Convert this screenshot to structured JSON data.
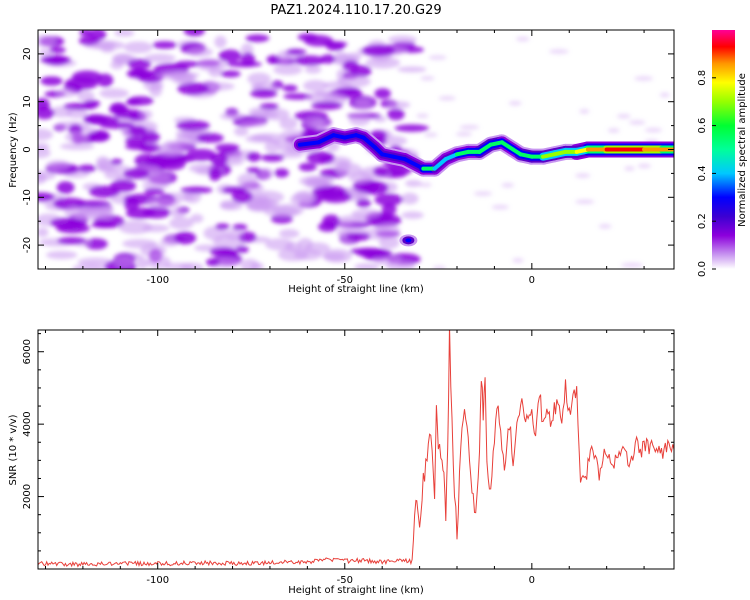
{
  "figure": {
    "title": "PAZ1.2024.110.17.20.G29"
  },
  "chart_data": [
    {
      "type": "heatmap",
      "xlabel": "Height of straight line (km)",
      "ylabel": "Frequency (Hz)",
      "xlim": [
        -132,
        38
      ],
      "ylim": [
        -25,
        25
      ],
      "x_ticks": [
        -100,
        -50,
        0
      ],
      "y_ticks": [
        -20,
        -10,
        0,
        10,
        20
      ],
      "colorbar_label": "Normalized spectral amplitude",
      "colorbar_ticks": [
        0.0,
        0.2,
        0.4,
        0.6,
        0.8
      ],
      "colorbar_range": [
        0,
        1
      ],
      "colormap": [
        "#ffffff",
        "#c896f0",
        "#8c00dc",
        "#5a00c8",
        "#0000ff",
        "#00c8ff",
        "#00ff64",
        "#96ff00",
        "#ffff00",
        "#ff9600",
        "#ff0000",
        "#ff0096"
      ],
      "noise_region_x": [
        -132,
        -31
      ],
      "signal_track": [
        {
          "x": -62,
          "y": 1,
          "amp": 0.45
        },
        {
          "x": -57,
          "y": 1.5,
          "amp": 0.4
        },
        {
          "x": -53,
          "y": 3,
          "amp": 0.35
        },
        {
          "x": -50,
          "y": 2.5,
          "amp": 0.4
        },
        {
          "x": -47,
          "y": 3,
          "amp": 0.35
        },
        {
          "x": -45,
          "y": 2.5,
          "amp": 0.4
        },
        {
          "x": -42,
          "y": 0.5,
          "amp": 0.45
        },
        {
          "x": -40,
          "y": -1,
          "amp": 0.4
        },
        {
          "x": -37,
          "y": -1.5,
          "amp": 0.45
        },
        {
          "x": -34,
          "y": -2,
          "amp": 0.35
        },
        {
          "x": -29,
          "y": -4,
          "amp": 0.5
        },
        {
          "x": -26,
          "y": -4,
          "amp": 0.55
        },
        {
          "x": -23,
          "y": -2,
          "amp": 0.45
        },
        {
          "x": -20,
          "y": -1,
          "amp": 0.65
        },
        {
          "x": -17,
          "y": -0.5,
          "amp": 0.5
        },
        {
          "x": -14,
          "y": -0.5,
          "amp": 0.55
        },
        {
          "x": -11,
          "y": 1,
          "amp": 0.6
        },
        {
          "x": -8,
          "y": 1.5,
          "amp": 0.55
        },
        {
          "x": -5,
          "y": 0,
          "amp": 0.5
        },
        {
          "x": -3,
          "y": -1,
          "amp": 0.6
        },
        {
          "x": 0,
          "y": -1.5,
          "amp": 0.55
        },
        {
          "x": 3,
          "y": -1.5,
          "amp": 0.75
        },
        {
          "x": 6,
          "y": -1,
          "amp": 0.6
        },
        {
          "x": 9,
          "y": -0.5,
          "amp": 0.65
        },
        {
          "x": 12,
          "y": -0.5,
          "amp": 0.7
        },
        {
          "x": 15,
          "y": 0,
          "amp": 0.8
        },
        {
          "x": 20,
          "y": 0,
          "amp": 0.9
        },
        {
          "x": 25,
          "y": 0,
          "amp": 0.92
        },
        {
          "x": 30,
          "y": 0,
          "amp": 0.9
        },
        {
          "x": 35,
          "y": 0,
          "amp": 0.85
        },
        {
          "x": 38,
          "y": 0,
          "amp": 0.8
        }
      ],
      "isolated_blob": {
        "x": -33,
        "y": -19,
        "amp": 0.55
      }
    },
    {
      "type": "line",
      "xlabel": "Height of straight line (km)",
      "ylabel": "SNR (10 * v/v)",
      "xlim": [
        -132,
        38
      ],
      "ylim": [
        0,
        6600
      ],
      "x_ticks": [
        -100,
        -50,
        0
      ],
      "y_ticks": [
        2000,
        4000,
        6000
      ],
      "grid": false,
      "series": [
        {
          "color": "#e8403a",
          "x": [
            -132,
            -120,
            -110,
            -100,
            -90,
            -80,
            -70,
            -60,
            -55,
            -50,
            -45,
            -40,
            -35,
            -32,
            -31,
            -30.5,
            -30,
            -29,
            -28,
            -27,
            -26,
            -25.5,
            -25,
            -24,
            -23.5,
            -23,
            -22.5,
            -22,
            -21,
            -20,
            -19,
            -18,
            -17,
            -16,
            -15,
            -14,
            -13.5,
            -13,
            -12.5,
            -12,
            -11,
            -10,
            -9,
            -8,
            -7,
            -6,
            -5,
            -4,
            -3,
            -2,
            -1,
            0,
            1,
            2,
            3,
            4,
            5,
            6,
            7,
            8,
            9,
            10,
            11,
            12,
            13,
            14,
            16,
            18,
            20,
            22,
            24,
            26,
            28,
            30,
            32,
            34,
            36,
            38
          ],
          "y": [
            150,
            130,
            160,
            140,
            170,
            150,
            180,
            200,
            250,
            220,
            240,
            200,
            230,
            200,
            2100,
            1700,
            1200,
            2400,
            3000,
            3800,
            2000,
            4300,
            3500,
            3000,
            2500,
            1400,
            3500,
            6500,
            2800,
            1000,
            3200,
            4500,
            3500,
            2000,
            1500,
            3200,
            5400,
            4200,
            5300,
            3000,
            2200,
            3500,
            4600,
            3500,
            2700,
            4100,
            3000,
            3800,
            4700,
            4200,
            3900,
            4500,
            3500,
            4900,
            4000,
            4500,
            3900,
            4400,
            4800,
            4200,
            5000,
            4300,
            4700,
            5100,
            2500,
            2400,
            3300,
            2700,
            3300,
            2900,
            3200,
            3000,
            3400,
            3300,
            3500,
            3200,
            3400,
            3300
          ]
        }
      ]
    }
  ]
}
